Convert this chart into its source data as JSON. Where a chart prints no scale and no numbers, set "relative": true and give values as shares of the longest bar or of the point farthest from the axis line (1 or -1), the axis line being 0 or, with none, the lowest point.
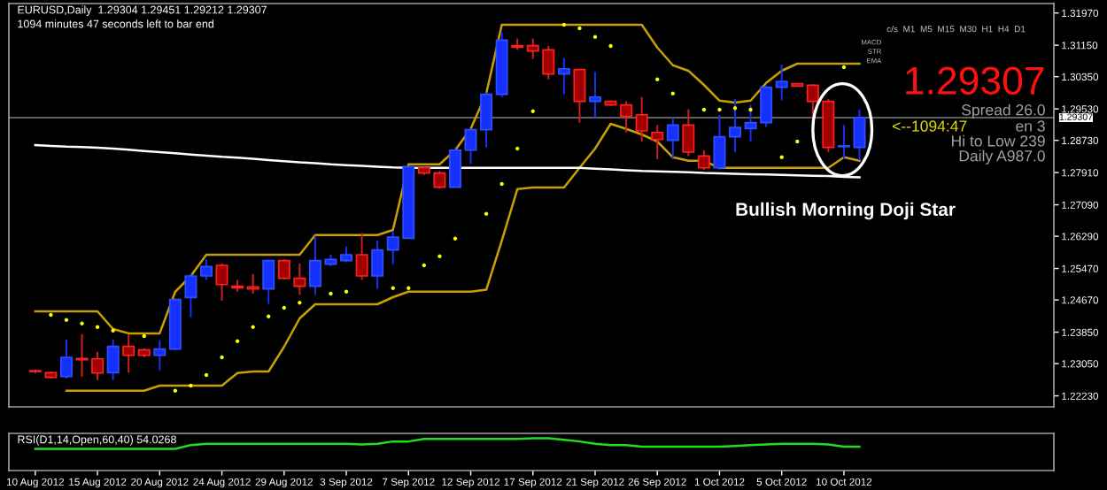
{
  "chart_data": [
    {
      "type": "candlestick",
      "title": "EURUSD,Daily  1.29304 1.29451 1.29212 1.29307",
      "subtitle": "1094 minutes 47 seconds left to bar end",
      "categories": [
        null,
        null,
        null,
        null,
        null,
        null,
        null,
        null,
        null,
        null,
        null,
        null,
        null,
        null,
        null,
        null,
        null,
        null,
        null,
        null,
        null,
        null,
        null,
        null,
        null,
        null,
        null,
        null,
        null,
        null,
        null,
        null,
        null,
        null,
        null,
        null,
        null,
        null,
        null,
        null,
        null,
        null,
        null,
        null,
        null,
        null,
        null,
        null,
        null,
        null,
        null,
        null,
        null,
        null
      ],
      "ohlc": [
        [
          1.2287,
          1.229,
          1.2281,
          1.2285
        ],
        [
          1.2282,
          1.2285,
          1.2267,
          1.227
        ],
        [
          1.2272,
          1.2366,
          1.2267,
          1.2321
        ],
        [
          1.2318,
          1.238,
          1.2272,
          1.2315
        ],
        [
          1.2317,
          1.2335,
          1.2263,
          1.2281
        ],
        [
          1.2282,
          1.2367,
          1.2263,
          1.2349
        ],
        [
          1.2349,
          1.238,
          1.2282,
          1.2326
        ],
        [
          1.234,
          1.2344,
          1.2321,
          1.2326
        ],
        [
          1.2326,
          1.2365,
          1.2288,
          1.2342
        ],
        [
          1.2342,
          1.247,
          1.2339,
          1.2468
        ],
        [
          1.2473,
          1.2533,
          1.2423,
          1.2528
        ],
        [
          1.2528,
          1.257,
          1.2518,
          1.2552
        ],
        [
          1.2555,
          1.256,
          1.2465,
          1.2506
        ],
        [
          1.2502,
          1.2518,
          1.2488,
          1.2498
        ],
        [
          1.25,
          1.2533,
          1.2483,
          1.2495
        ],
        [
          1.2495,
          1.2569,
          1.2457,
          1.2567
        ],
        [
          1.2567,
          1.257,
          1.2519,
          1.2522
        ],
        [
          1.2522,
          1.256,
          1.248,
          1.2502
        ],
        [
          1.2502,
          1.263,
          1.248,
          1.2567
        ],
        [
          1.2558,
          1.2582,
          1.2553,
          1.257
        ],
        [
          1.2567,
          1.2603,
          1.2563,
          1.2582
        ],
        [
          1.2582,
          1.2637,
          1.2518,
          1.2528
        ],
        [
          1.2528,
          1.2618,
          1.2495,
          1.2594
        ],
        [
          1.2594,
          1.2642,
          1.2558,
          1.2627
        ],
        [
          1.2624,
          1.2807,
          1.2623,
          1.2806
        ],
        [
          1.2803,
          1.2806,
          1.2785,
          1.279
        ],
        [
          1.279,
          1.2795,
          1.275,
          1.2754
        ],
        [
          1.2754,
          1.2855,
          1.2753,
          1.2848
        ],
        [
          1.2848,
          1.2903,
          1.2813,
          1.29
        ],
        [
          1.29,
          1.2995,
          1.2855,
          1.299
        ],
        [
          1.299,
          1.3148,
          1.2983,
          1.3128
        ],
        [
          1.3114,
          1.3132,
          1.3103,
          1.311
        ],
        [
          1.3114,
          1.3132,
          1.308,
          1.31
        ],
        [
          1.3103,
          1.3113,
          1.3028,
          1.3042
        ],
        [
          1.3042,
          1.3083,
          1.299,
          1.3055
        ],
        [
          1.3053,
          1.3055,
          1.2918,
          1.2972
        ],
        [
          1.2972,
          1.3047,
          1.293,
          1.2983
        ],
        [
          1.2972,
          1.2975,
          1.296,
          1.2963
        ],
        [
          1.2963,
          1.2972,
          1.2893,
          1.2934
        ],
        [
          1.2938,
          1.2983,
          1.287,
          1.2897
        ],
        [
          1.2893,
          1.2912,
          1.2825,
          1.2875
        ],
        [
          1.2873,
          1.293,
          1.2825,
          1.2912
        ],
        [
          1.2912,
          1.2952,
          1.2833,
          1.2843
        ],
        [
          1.2833,
          1.2848,
          1.2798,
          1.2803
        ],
        [
          1.2803,
          1.2938,
          1.2798,
          1.2882
        ],
        [
          1.2882,
          1.2978,
          1.2843,
          1.2906
        ],
        [
          1.2903,
          1.2963,
          1.287,
          1.2918
        ],
        [
          1.2918,
          1.3013,
          1.2907,
          1.3008
        ],
        [
          1.3008,
          1.3065,
          1.2975,
          1.3023
        ],
        [
          1.3017,
          1.3019,
          1.301,
          1.3011
        ],
        [
          1.3013,
          1.3016,
          1.293,
          1.2972
        ],
        [
          1.2972,
          1.2978,
          1.2843,
          1.2855
        ],
        [
          1.2857,
          1.2912,
          1.2825,
          1.2859
        ],
        [
          1.2855,
          1.2952,
          1.2822,
          1.2931
        ]
      ],
      "colors": [
        "#a00000",
        "#a00000",
        "#1530ff",
        "#a00000",
        "#a00000",
        "#1530ff",
        "#a00000",
        "#a00000",
        "#1530ff",
        "#1530ff",
        "#1530ff",
        "#1530ff",
        "#a00000",
        "#a00000",
        "#a00000",
        "#1530ff",
        "#a00000",
        "#a00000",
        "#1530ff",
        "#1530ff",
        "#1530ff",
        "#a00000",
        "#1530ff",
        "#1530ff",
        "#1530ff",
        "#a00000",
        "#a00000",
        "#1530ff",
        "#1530ff",
        "#1530ff",
        "#1530ff",
        "#a00000",
        "#a00000",
        "#a00000",
        "#1530ff",
        "#a00000",
        "#1530ff",
        "#a00000",
        "#a00000",
        "#a00000",
        "#a00000",
        "#1530ff",
        "#a00000",
        "#a00000",
        "#1530ff",
        "#1530ff",
        "#1530ff",
        "#1530ff",
        "#1530ff",
        "#a00000",
        "#a00000",
        "#a00000",
        "#1530ff",
        "#1530ff"
      ],
      "series": [
        {
          "type": "line",
          "color": "#c8a000",
          "values": [
            1.2438,
            1.2438,
            1.2438,
            1.2438,
            1.2438,
            1.2393,
            1.2382,
            1.2382,
            1.2382,
            1.2488,
            1.2528,
            1.2582,
            1.2582,
            1.2582,
            1.2582,
            1.2582,
            1.2582,
            1.2582,
            1.2632,
            1.2632,
            1.2632,
            1.2632,
            1.2632,
            1.2645,
            1.2812,
            1.2812,
            1.2812,
            1.2848,
            1.2902,
            1.2992,
            1.3167,
            1.3167,
            1.3167,
            1.3167,
            1.3167,
            1.3167,
            1.3167,
            1.3167,
            1.3167,
            1.3167,
            1.3109,
            1.3064,
            1.305,
            1.3014,
            1.2974,
            1.2969,
            1.2974,
            1.3019,
            1.305,
            1.3068,
            1.3068,
            1.3068,
            1.3068,
            1.3068
          ]
        },
        {
          "type": "line",
          "color": "#c8a000",
          "values": [
            null,
            null,
            1.2236,
            1.2236,
            1.2236,
            1.2236,
            1.2236,
            1.2236,
            1.2249,
            1.2249,
            1.2249,
            1.2249,
            1.2249,
            1.2281,
            1.2285,
            1.2285,
            1.2348,
            1.242,
            1.2456,
            1.2456,
            1.2456,
            1.2456,
            1.2456,
            1.2474,
            1.2488,
            1.2488,
            1.2488,
            1.2488,
            1.2488,
            1.2493,
            1.2618,
            1.2749,
            1.2753,
            1.2753,
            1.2753,
            1.2803,
            1.2852,
            1.2915,
            1.2902,
            1.2888,
            1.287,
            1.283,
            1.2821,
            1.2821,
            1.2803,
            1.2803,
            1.2803,
            1.2803,
            1.2803,
            1.2803,
            1.2803,
            1.2803,
            1.283,
            1.2821
          ]
        },
        {
          "type": "line",
          "color": "#ffffff",
          "values": [
            1.2861,
            1.2859,
            1.2857,
            1.2856,
            1.2854,
            1.2852,
            1.2849,
            1.2846,
            1.2843,
            1.284,
            1.2837,
            1.2834,
            1.2831,
            1.2829,
            1.2826,
            1.2823,
            1.282,
            1.2817,
            1.2815,
            1.2812,
            1.281,
            1.2808,
            1.2806,
            1.2804,
            1.2803,
            1.2803,
            1.2803,
            1.2803,
            1.2803,
            1.2803,
            1.2803,
            1.2803,
            1.2803,
            1.2803,
            1.2803,
            1.2803,
            1.2801,
            1.2799,
            1.2797,
            1.2795,
            1.2794,
            1.2793,
            1.2792,
            1.279,
            1.2789,
            1.2788,
            1.2787,
            1.2786,
            1.2785,
            1.2784,
            1.2783,
            1.2782,
            1.278,
            1.2779
          ]
        },
        {
          "type": "scatter",
          "color": "#ffff00",
          "values": [
            null,
            1.2429,
            1.2416,
            1.2407,
            1.2398,
            1.2389,
            null,
            1.2375,
            null,
            1.2236,
            1.2249,
            1.2276,
            1.2321,
            1.2362,
            1.2398,
            1.2425,
            1.2447,
            1.246,
            null,
            1.2483,
            1.2488,
            null,
            null,
            1.2497,
            1.2497,
            1.2555,
            1.2578,
            1.2623,
            null,
            1.2686,
            1.2762,
            1.2852,
            1.2947,
            null,
            1.3167,
            1.3158,
            1.3136,
            1.3113,
            null,
            null,
            1.3028,
            1.2992,
            null,
            1.2951,
            1.2951,
            1.2955,
            1.2951,
            null,
            1.283,
            1.287,
            null,
            null,
            1.3059,
            null
          ]
        }
      ],
      "ylim": [
        1.2195,
        1.3221
      ],
      "yticks": [
        {
          "value": 1.3197,
          "label": "1.31970"
        },
        {
          "value": 1.3115,
          "label": "1.31150"
        },
        {
          "value": 1.3035,
          "label": "1.30350"
        },
        {
          "value": 1.2953,
          "label": "1.29530"
        },
        {
          "value": 1.2873,
          "label": "1.28730"
        },
        {
          "value": 1.2791,
          "label": "1.27910"
        },
        {
          "value": 1.2709,
          "label": "1.27090"
        },
        {
          "value": 1.2629,
          "label": "1.26290"
        },
        {
          "value": 1.2547,
          "label": "1.25470"
        },
        {
          "value": 1.2467,
          "label": "1.24670"
        },
        {
          "value": 1.2385,
          "label": "1.23850"
        },
        {
          "value": 1.2305,
          "label": "1.23050"
        },
        {
          "value": 1.2223,
          "label": "1.22230"
        }
      ],
      "ref_lines": [
        {
          "axis": "y",
          "value": 1.29307,
          "label": "1.29307",
          "color": "#808080"
        }
      ],
      "annotations": [
        "Bullish Morning Doji Star",
        "c/s  M1  M5  M15  M30  H1  H4  D1",
        "MACD",
        "STR",
        "EMA",
        "1.29307",
        "Spread 26.0",
        "<--1094:47",
        "en 3",
        "Hi to Low 239",
        "Daily A987.0"
      ],
      "tick_labels": "y",
      "grid": false
    },
    {
      "type": "line",
      "title": "RSI(D1,14,Open,60,40) 54.0268",
      "relative": true,
      "categories": [
        "10 Aug 2012",
        null,
        null,
        null,
        "15 Aug 2012",
        null,
        null,
        null,
        "20 Aug 2012",
        null,
        null,
        null,
        "24 Aug 2012",
        null,
        null,
        null,
        "29 Aug 2012",
        null,
        null,
        null,
        "3 Sep 2012",
        null,
        null,
        null,
        "7 Sep 2012",
        null,
        null,
        null,
        "12 Sep 2012",
        null,
        null,
        null,
        "17 Sep 2012",
        null,
        null,
        null,
        "21 Sep 2012",
        null,
        null,
        null,
        "26 Sep 2012",
        null,
        null,
        null,
        "1 Oct 2012",
        null,
        null,
        null,
        "5 Oct 2012",
        null,
        null,
        null,
        "10 Oct 2012",
        null
      ],
      "series": [
        {
          "color": "#22dd22",
          "values": [
            0.67,
            0.67,
            0.67,
            0.67,
            0.67,
            0.67,
            0.67,
            0.67,
            0.67,
            0.67,
            0.79,
            0.83,
            0.83,
            0.83,
            0.83,
            0.83,
            0.83,
            0.83,
            0.83,
            0.83,
            0.83,
            0.81,
            0.83,
            0.9,
            0.9,
            0.98,
            0.98,
            0.98,
            0.98,
            0.98,
            0.98,
            0.98,
            1,
            1,
            0.95,
            0.9,
            0.83,
            0.79,
            0.79,
            0.74,
            0.74,
            0.74,
            0.74,
            0.74,
            0.74,
            0.76,
            0.79,
            0.81,
            0.83,
            0.83,
            0.83,
            0.81,
            0.74,
            0.74
          ]
        }
      ],
      "tick_labels": "x",
      "grid": false
    }
  ]
}
